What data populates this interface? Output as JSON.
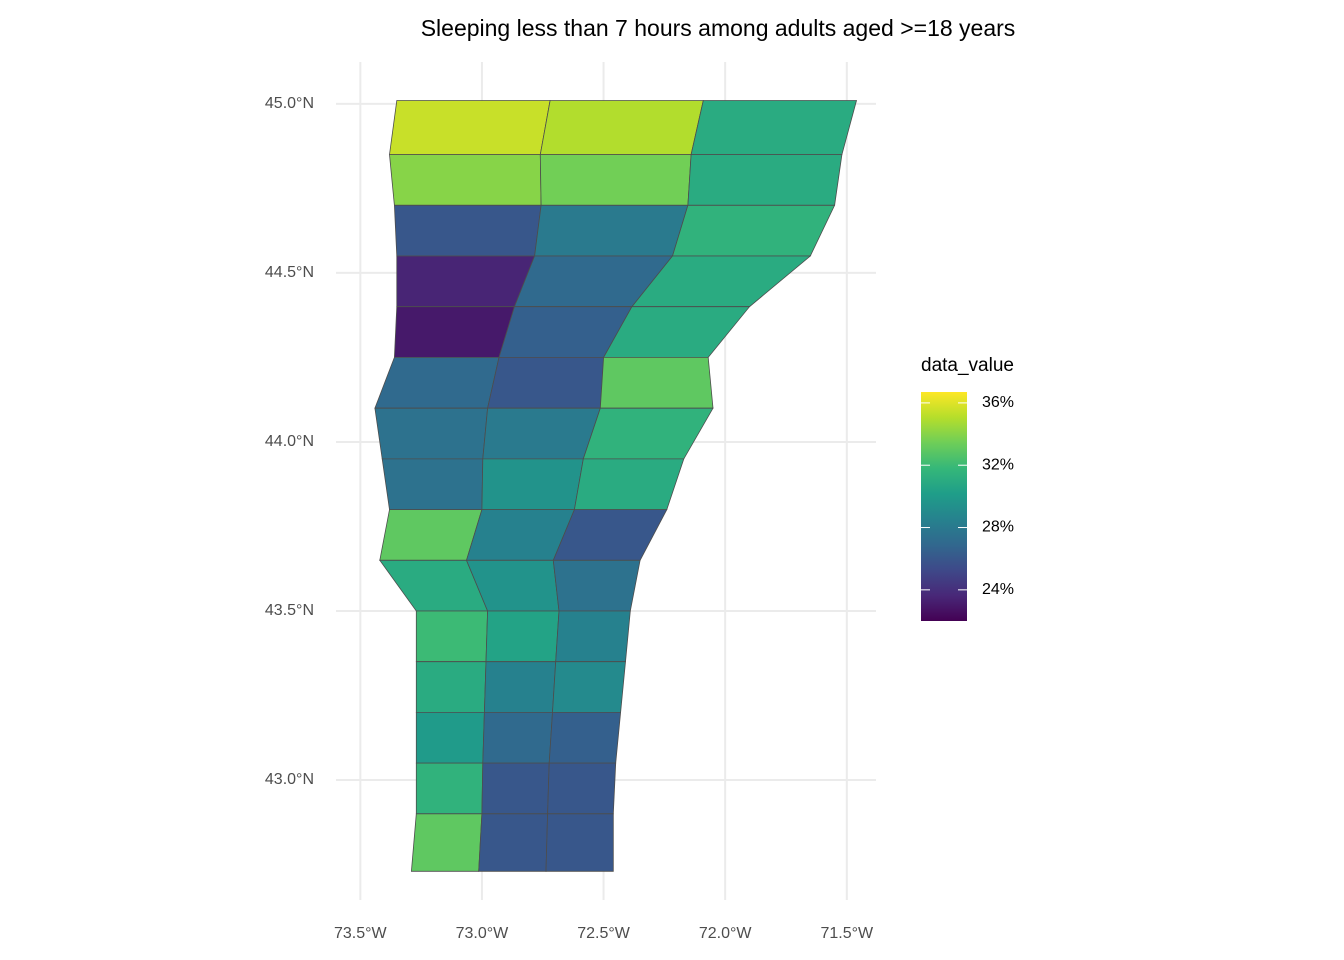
{
  "chart_data": {
    "type": "choropleth",
    "title": "Sleeping less than 7 hours among adults aged >=18 years",
    "legend_title": "data_value",
    "colormap": "viridis",
    "color_limits": [
      22.0,
      36.7
    ],
    "color_ticks": [
      {
        "value": 24,
        "label": "24%"
      },
      {
        "value": 28,
        "label": "28%"
      },
      {
        "value": 32,
        "label": "32%"
      },
      {
        "value": 36,
        "label": "36%"
      }
    ],
    "xlim": [
      -73.6,
      -71.38
    ],
    "ylim": [
      42.645,
      45.124
    ],
    "xticks": [
      {
        "value": -73.5,
        "label": "73.5°W"
      },
      {
        "value": -73.0,
        "label": "73.0°W"
      },
      {
        "value": -72.5,
        "label": "72.5°W"
      },
      {
        "value": -72.0,
        "label": "72.0°W"
      },
      {
        "value": -71.5,
        "label": "71.5°W"
      }
    ],
    "yticks": [
      {
        "value": 43.0,
        "label": "43.0°N"
      },
      {
        "value": 43.5,
        "label": "43.5°N"
      },
      {
        "value": 44.0,
        "label": "44.0°N"
      },
      {
        "value": 44.5,
        "label": "44.5°N"
      },
      {
        "value": 45.0,
        "label": "45.0°N"
      }
    ],
    "grid": true,
    "regions": {
      "lat": [
        45.01,
        44.85,
        44.7,
        44.55,
        44.4,
        44.25,
        44.1,
        43.95,
        43.8,
        43.65,
        43.5,
        43.35,
        43.2,
        43.05,
        42.9,
        42.73
      ],
      "west_lon": [
        -73.35,
        -73.38,
        -73.36,
        -73.35,
        -73.35,
        -73.36,
        -73.44,
        -73.41,
        -73.38,
        -73.42,
        -73.27,
        -73.27,
        -73.27,
        -73.27,
        -73.27,
        -73.29
      ],
      "east_lon": [
        -71.46,
        -71.52,
        -71.55,
        -71.65,
        -71.9,
        -72.07,
        -72.05,
        -72.17,
        -72.24,
        -72.35,
        -72.39,
        -72.41,
        -72.43,
        -72.45,
        -72.46,
        -72.46
      ],
      "values": [
        [
          35.5,
          35,
          31
        ],
        [
          34,
          33.5,
          31
        ],
        [
          26,
          28,
          31.5
        ],
        [
          23.5,
          27,
          31
        ],
        [
          23,
          26.5,
          31
        ],
        [
          27,
          26,
          33
        ],
        [
          27.5,
          28,
          31.5
        ],
        [
          27.5,
          29.5,
          31
        ],
        [
          33,
          28.5,
          26
        ],
        [
          31,
          29.5,
          27.5
        ],
        [
          32,
          30.5,
          28.5
        ],
        [
          31,
          28.5,
          29
        ],
        [
          30,
          27,
          26.5
        ],
        [
          31.5,
          26,
          26
        ],
        [
          33,
          26,
          26
        ]
      ]
    }
  }
}
